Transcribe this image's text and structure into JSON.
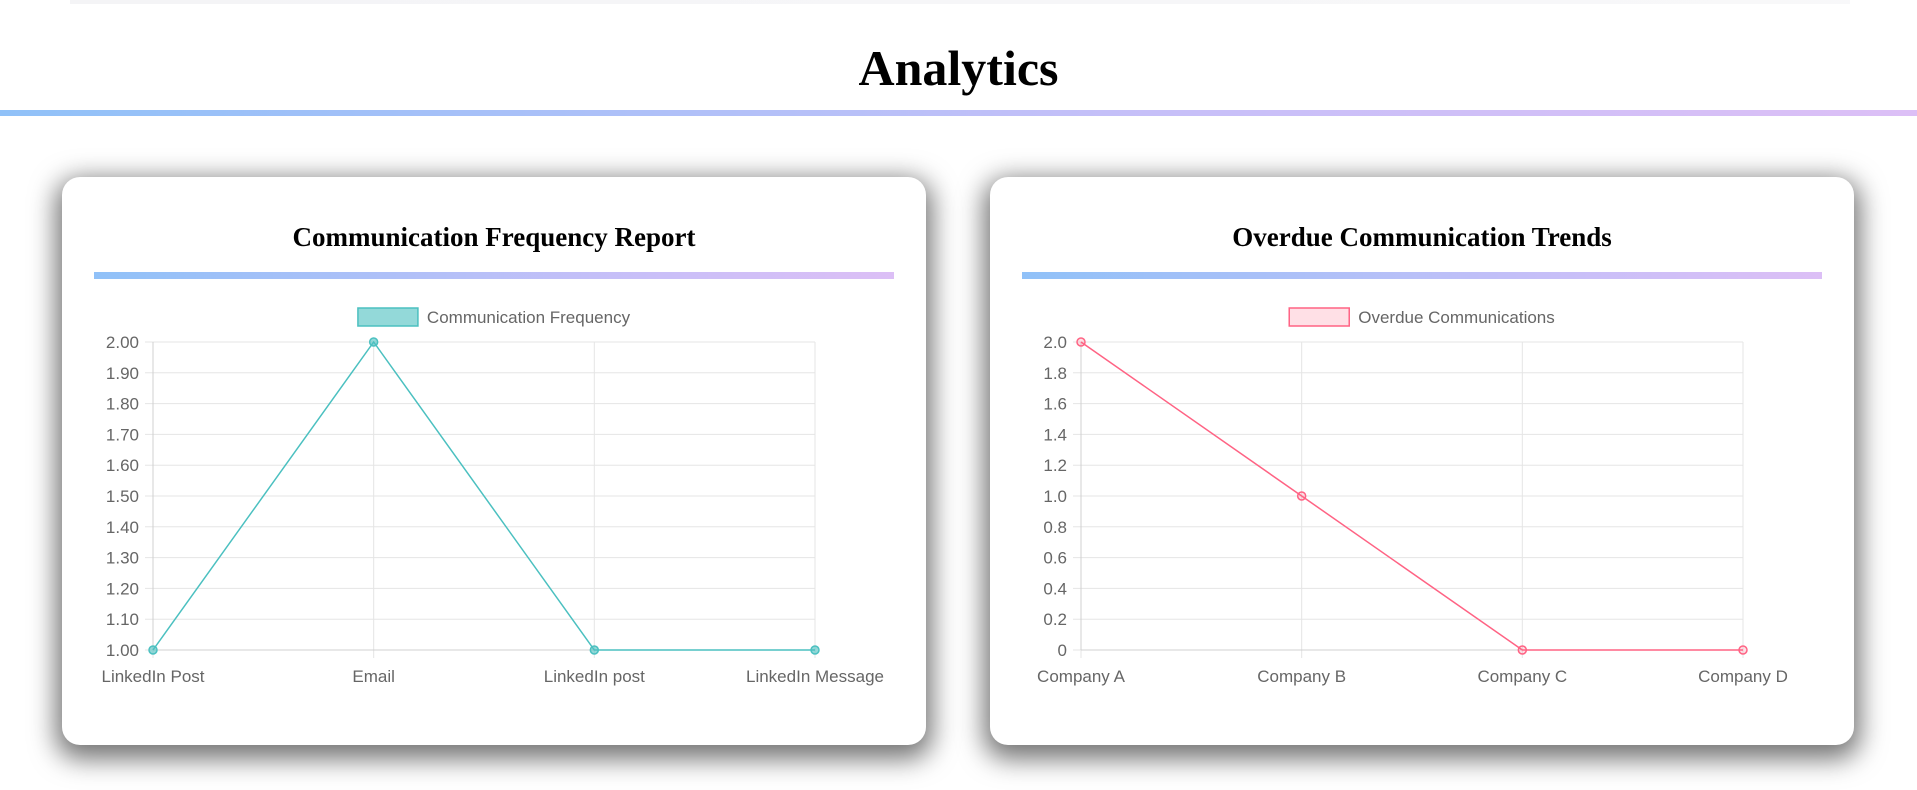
{
  "page": {
    "title": "Analytics"
  },
  "chart_data": [
    {
      "type": "line",
      "title": "Communication Frequency Report",
      "categories": [
        "LinkedIn Post",
        "Email",
        "LinkedIn post",
        "LinkedIn Message"
      ],
      "series": [
        {
          "name": "Communication Frequency",
          "values": [
            1,
            2,
            1,
            1
          ],
          "color": "#4bc0c0",
          "fill": "rgba(75,192,192,0.6)"
        }
      ],
      "ylim": [
        1.0,
        2.0
      ],
      "yticks": [
        "2.00",
        "1.90",
        "1.80",
        "1.70",
        "1.60",
        "1.50",
        "1.40",
        "1.30",
        "1.20",
        "1.10",
        "1.00"
      ],
      "legend": "top",
      "grid": true
    },
    {
      "type": "line",
      "title": "Overdue Communication Trends",
      "categories": [
        "Company A",
        "Company B",
        "Company C",
        "Company D"
      ],
      "series": [
        {
          "name": "Overdue Communications",
          "values": [
            2,
            1,
            0,
            0
          ],
          "color": "#ff6384",
          "fill": "rgba(255,99,132,0.2)"
        }
      ],
      "ylim": [
        0,
        2.0
      ],
      "yticks": [
        "2.0",
        "1.8",
        "1.6",
        "1.4",
        "1.2",
        "1.0",
        "0.8",
        "0.6",
        "0.4",
        "0.2",
        "0"
      ],
      "legend": "top",
      "grid": true
    }
  ]
}
